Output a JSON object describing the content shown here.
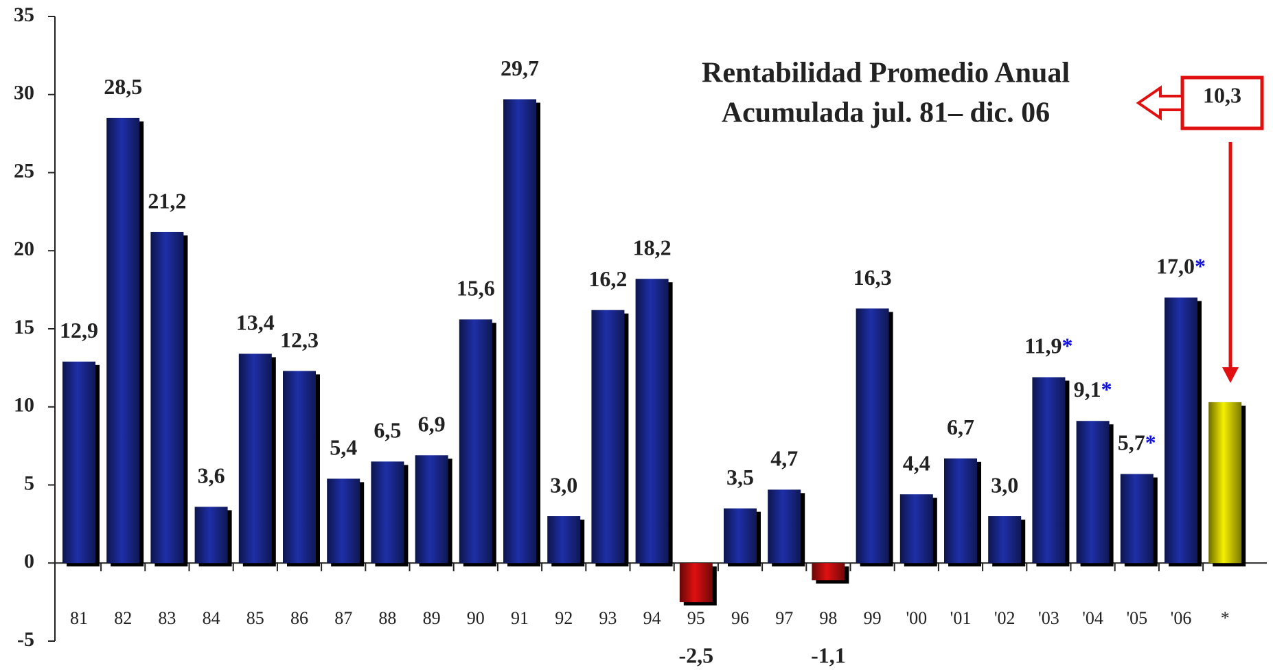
{
  "chart_data": {
    "type": "bar",
    "title_lines": [
      "Rentabilidad Promedio Anual",
      "Acumulada jul. 81– dic. 06"
    ],
    "categories": [
      "81",
      "82",
      "83",
      "84",
      "85",
      "86",
      "87",
      "88",
      "89",
      "90",
      "91",
      "92",
      "93",
      "94",
      "95",
      "96",
      "97",
      "98",
      "99",
      "'00",
      "'01",
      "'02",
      "'03",
      "'04",
      "'05",
      "'06",
      "*"
    ],
    "values": [
      12.9,
      28.5,
      21.2,
      3.6,
      13.4,
      12.3,
      5.4,
      6.5,
      6.9,
      15.6,
      29.7,
      3.0,
      16.2,
      18.2,
      -2.5,
      3.5,
      4.7,
      -1.1,
      16.3,
      4.4,
      6.7,
      3.0,
      11.9,
      9.1,
      5.7,
      17.0,
      10.3
    ],
    "value_labels": [
      "12,9",
      "28,5",
      "21,2",
      "3,6",
      "13,4",
      "12,3",
      "5,4",
      "6,5",
      "6,9",
      "15,6",
      "29,7",
      "3,0",
      "16,2",
      "18,2",
      "-2,5",
      "3,5",
      "4,7",
      "-1,1",
      "16,3",
      "4,4",
      "6,7",
      "3,0",
      "11,9*",
      "9,1*",
      "5,7*",
      "17,0*",
      "10,3"
    ],
    "colors": [
      "#1e2fa8",
      "#1e2fa8",
      "#1e2fa8",
      "#1e2fa8",
      "#1e2fa8",
      "#1e2fa8",
      "#1e2fa8",
      "#1e2fa8",
      "#1e2fa8",
      "#1e2fa8",
      "#1e2fa8",
      "#1e2fa8",
      "#1e2fa8",
      "#1e2fa8",
      "#e01010",
      "#1e2fa8",
      "#1e2fa8",
      "#e01010",
      "#1e2fa8",
      "#1e2fa8",
      "#1e2fa8",
      "#1e2fa8",
      "#1e2fa8",
      "#1e2fa8",
      "#1e2fa8",
      "#1e2fa8",
      "#f5f000"
    ],
    "ylim": [
      -5,
      35
    ],
    "yticks": [
      -5,
      0,
      5,
      10,
      15,
      20,
      25,
      30,
      35
    ],
    "grid": false
  }
}
